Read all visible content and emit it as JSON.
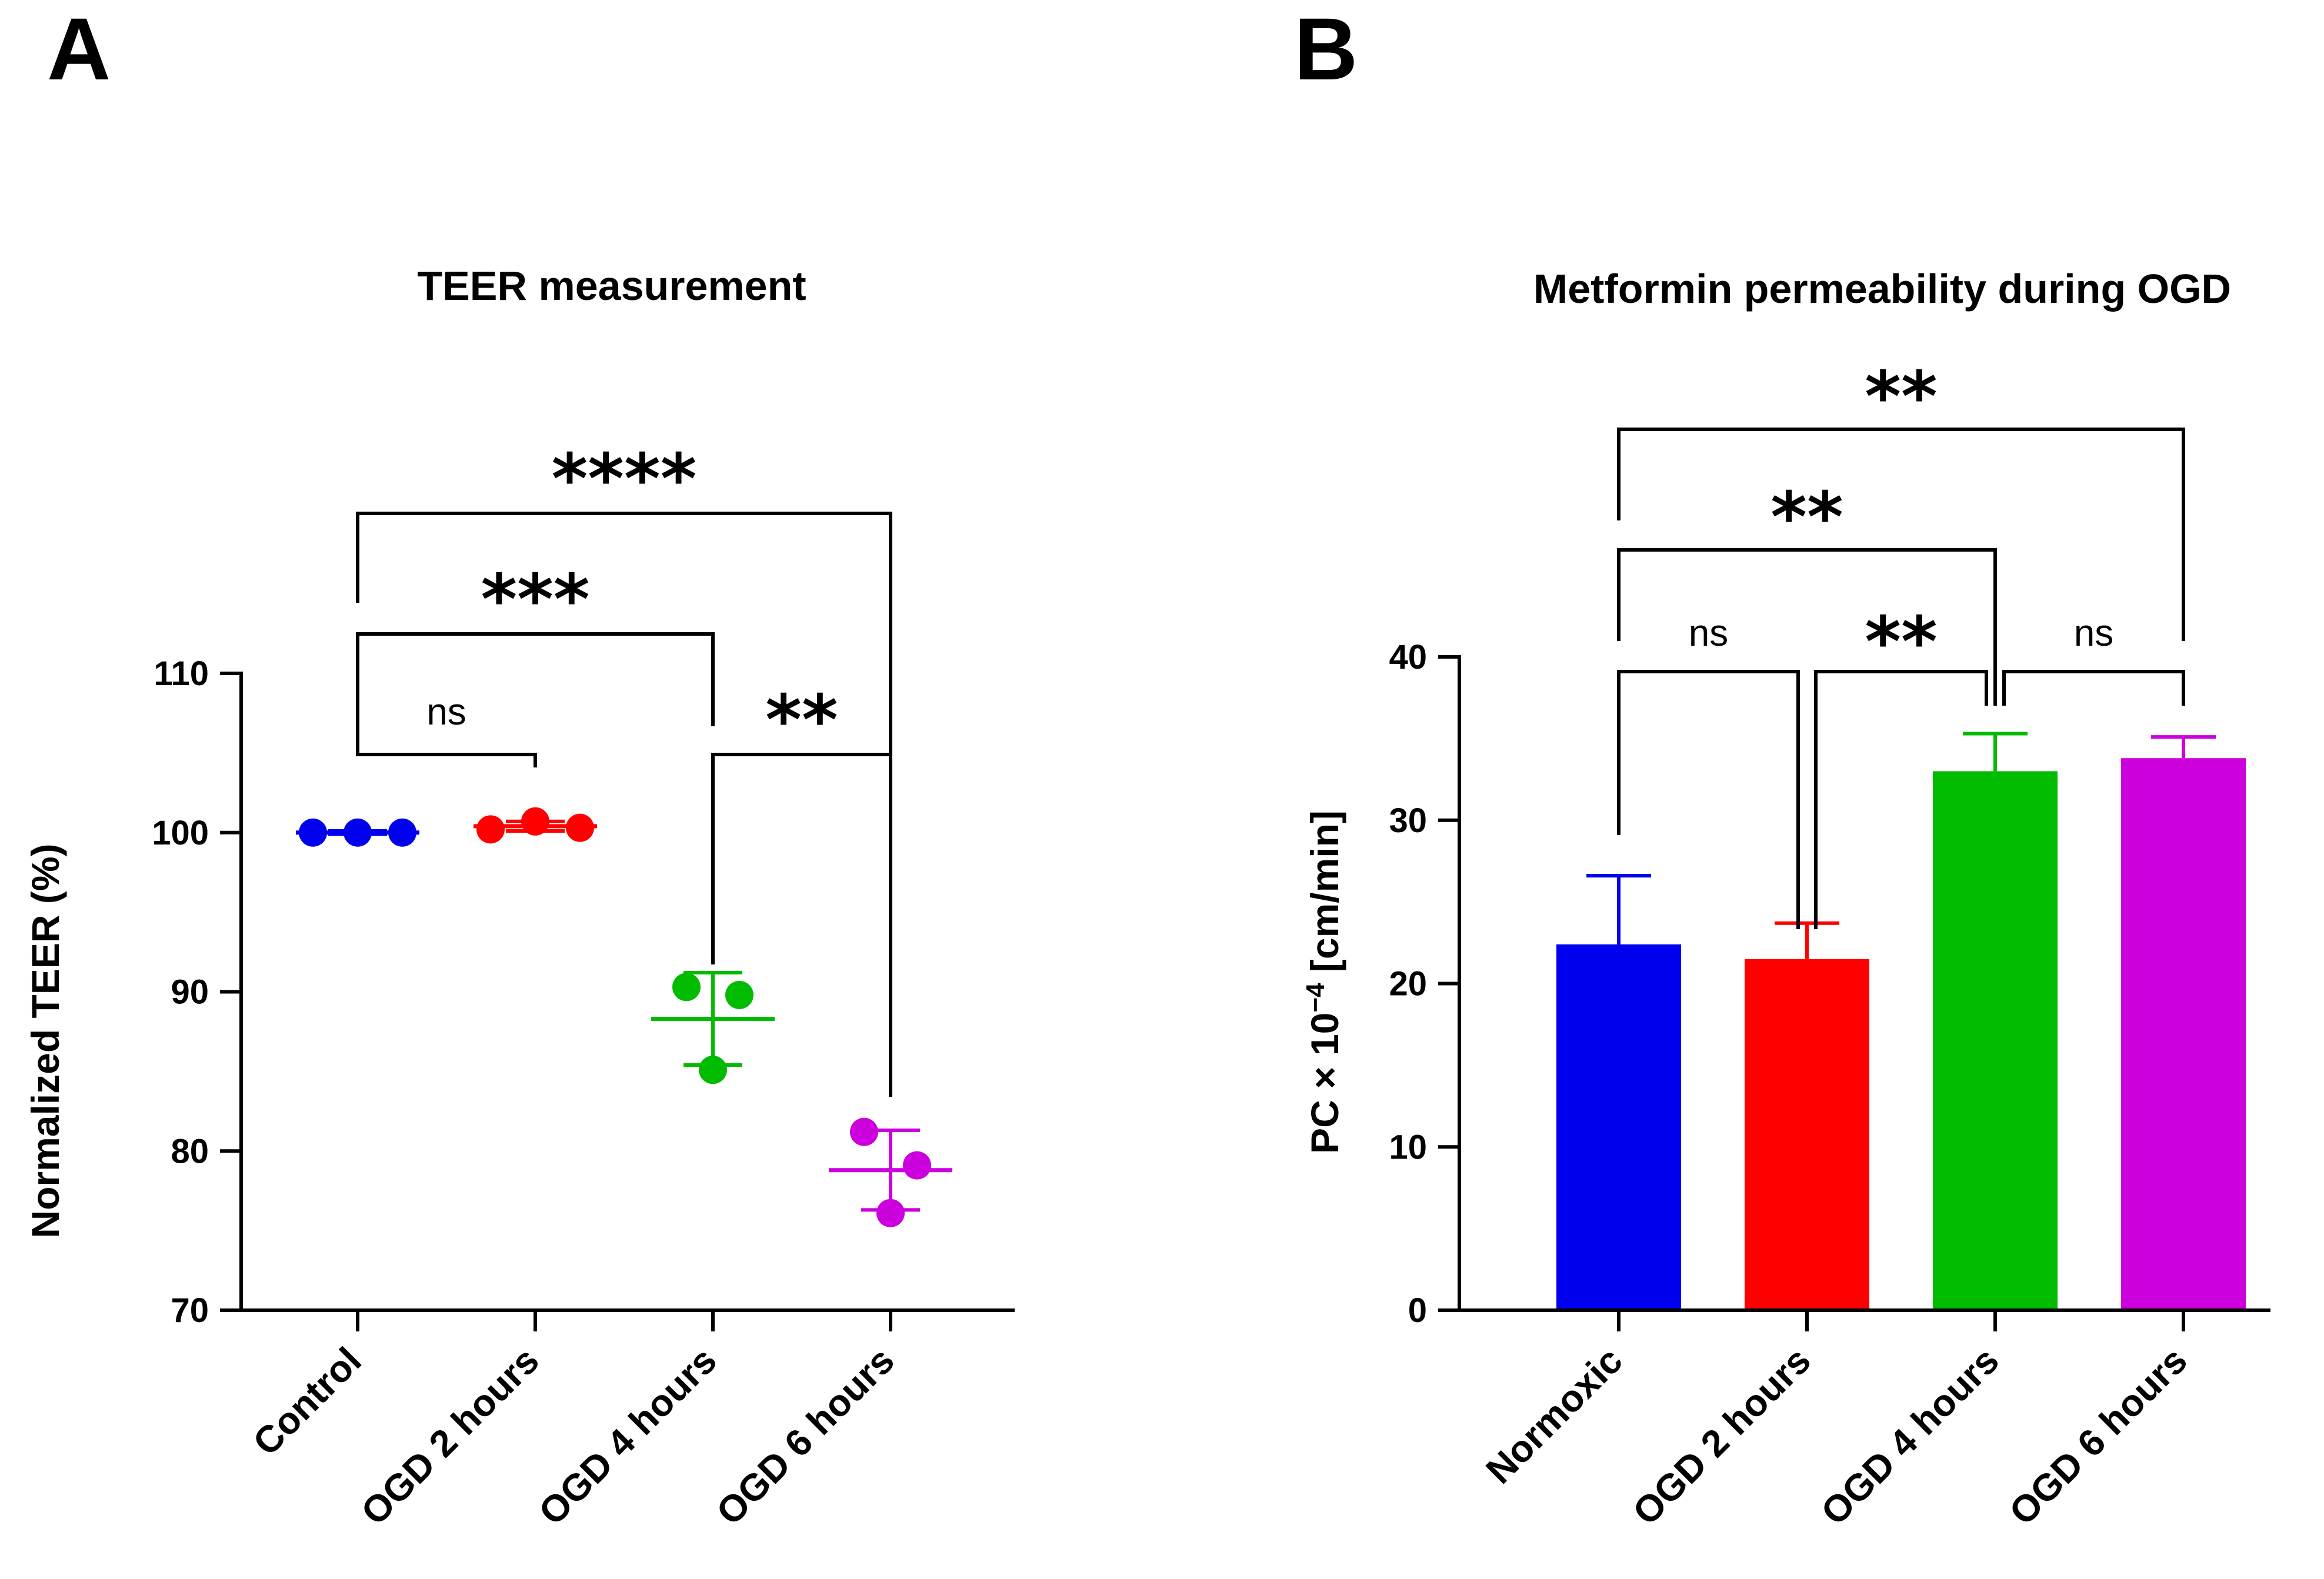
{
  "chart_data": [
    {
      "panel": "A",
      "type": "scatter",
      "title": "TEER measurement",
      "ylabel": "Normalized TEER (%)",
      "xlabel": "",
      "ylim": [
        70,
        110
      ],
      "yticks": [
        70,
        80,
        90,
        100,
        110
      ],
      "categories": [
        "Control",
        "OGD 2 hours",
        "OGD 4 hours",
        "OGD 6 hours"
      ],
      "colors": [
        "#0000ee",
        "#ff0000",
        "#00bb00",
        "#cc00dd"
      ],
      "points": [
        [
          100,
          100,
          100
        ],
        [
          100.2,
          100.7,
          100.3
        ],
        [
          90.3,
          89.8,
          85.1
        ],
        [
          81.2,
          79.1,
          76.1
        ]
      ],
      "means": [
        100,
        100.4,
        88.3,
        78.8
      ],
      "sd": [
        0.1,
        0.3,
        2.9,
        2.5
      ],
      "significance": [
        {
          "from": 0,
          "to": 1,
          "label": "ns"
        },
        {
          "from": 2,
          "to": 3,
          "label": "**"
        },
        {
          "from": 0,
          "to": 2,
          "label": "***"
        },
        {
          "from": 0,
          "to": 3,
          "label": "****"
        }
      ]
    },
    {
      "panel": "B",
      "type": "bar",
      "title": "Metformin permeability during OGD",
      "ylabel_main": "PC × 10",
      "ylabel_exp": "−4",
      "ylabel_unit": " [cm/min]",
      "xlabel": "",
      "ylim": [
        0,
        40
      ],
      "yticks": [
        0,
        10,
        20,
        30,
        40
      ],
      "categories": [
        "Normoxic",
        "OGD 2 hours",
        "OGD 4 hours",
        "OGD 6 hours"
      ],
      "colors": [
        "#0000ee",
        "#ff0000",
        "#00bb00",
        "#cc00dd"
      ],
      "values": [
        22.4,
        21.5,
        33.0,
        33.8
      ],
      "sd": [
        4.2,
        2.2,
        2.3,
        1.3
      ],
      "significance": [
        {
          "from": 0,
          "to": 1,
          "label": "ns"
        },
        {
          "from": 1,
          "to": 2,
          "label": "**"
        },
        {
          "from": 2,
          "to": 3,
          "label": "ns"
        },
        {
          "from": 0,
          "to": 2,
          "label": "**"
        },
        {
          "from": 0,
          "to": 3,
          "label": "**"
        }
      ]
    }
  ]
}
